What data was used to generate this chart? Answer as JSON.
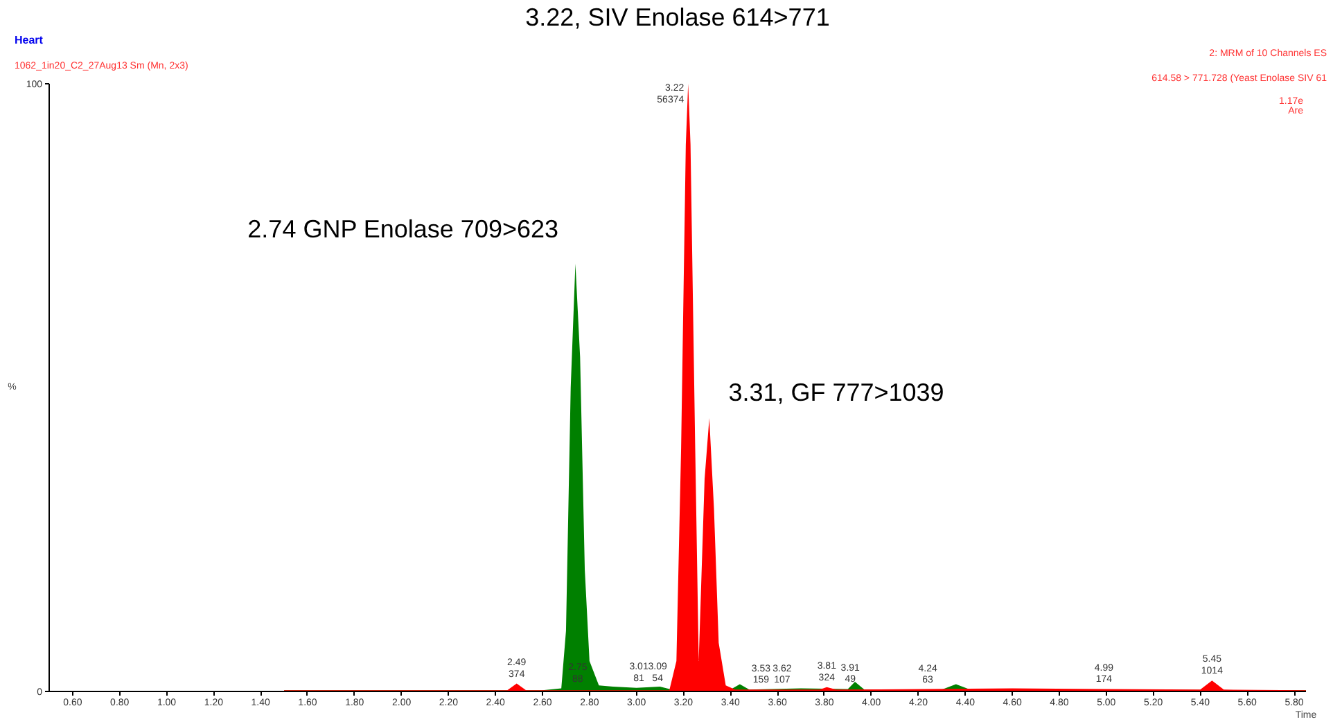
{
  "chart_data": {
    "type": "area",
    "title": "Heart",
    "subtitle": "1062_1in20_C2_27Aug13 Sm (Mn, 2x3)",
    "xlabel": "Time",
    "ylabel": "%",
    "xlim": [
      0.5,
      5.85
    ],
    "ylim": [
      0,
      100
    ],
    "xticks": [
      {
        "value": 0.6,
        "label": "0.60"
      },
      {
        "value": 0.8,
        "label": "0.80"
      },
      {
        "value": 1.0,
        "label": "1.00"
      },
      {
        "value": 1.2,
        "label": "1.20"
      },
      {
        "value": 1.4,
        "label": "1.40"
      },
      {
        "value": 1.6,
        "label": "1.60"
      },
      {
        "value": 1.8,
        "label": "1.80"
      },
      {
        "value": 2.0,
        "label": "2.00"
      },
      {
        "value": 2.2,
        "label": "2.20"
      },
      {
        "value": 2.4,
        "label": "2.40"
      },
      {
        "value": 2.6,
        "label": "2.60"
      },
      {
        "value": 2.8,
        "label": "2.80"
      },
      {
        "value": 3.0,
        "label": "3.00"
      },
      {
        "value": 3.2,
        "label": "3.20"
      },
      {
        "value": 3.4,
        "label": "3.40"
      },
      {
        "value": 3.6,
        "label": "3.60"
      },
      {
        "value": 3.8,
        "label": "3.80"
      },
      {
        "value": 4.0,
        "label": "4.00"
      },
      {
        "value": 4.2,
        "label": "4.20"
      },
      {
        "value": 4.4,
        "label": "4.40"
      },
      {
        "value": 4.6,
        "label": "4.60"
      },
      {
        "value": 4.8,
        "label": "4.80"
      },
      {
        "value": 5.0,
        "label": "5.00"
      },
      {
        "value": 5.2,
        "label": "5.20"
      },
      {
        "value": 5.4,
        "label": "5.40"
      },
      {
        "value": 5.6,
        "label": "5.60"
      },
      {
        "value": 5.8,
        "label": "5.80"
      }
    ],
    "yticks": [
      0,
      100
    ],
    "grid": false,
    "series": [
      {
        "color": "#008000",
        "x": [
          1.5,
          2.6,
          2.68,
          2.7,
          2.72,
          2.74,
          2.76,
          2.78,
          2.8,
          2.84,
          2.9,
          3.0,
          3.1,
          3.15,
          3.4,
          3.44,
          3.48,
          3.7,
          3.9,
          3.93,
          3.97,
          4.3,
          4.36,
          4.42,
          5.0,
          5.85
        ],
        "values": [
          0.2,
          0.2,
          0.5,
          10,
          50,
          70.4,
          55,
          20,
          5,
          1,
          0.8,
          0.6,
          0.8,
          0.3,
          0.3,
          1.2,
          0.3,
          0.5,
          0.4,
          1.6,
          0.3,
          0.3,
          1.2,
          0.3,
          0.3,
          0.2
        ]
      },
      {
        "color": "#ff0000",
        "x": [
          1.5,
          2.45,
          2.49,
          2.53,
          3.14,
          3.17,
          3.19,
          3.21,
          3.22,
          3.23,
          3.25,
          3.265,
          3.29,
          3.31,
          3.33,
          3.35,
          3.38,
          3.42,
          3.78,
          3.81,
          3.85,
          4.6,
          4.99,
          5.4,
          5.45,
          5.5,
          5.85
        ],
        "values": [
          0.2,
          0.2,
          1.3,
          0.2,
          0.2,
          5,
          40,
          90,
          100,
          90,
          40,
          5,
          35,
          45,
          30,
          8,
          1,
          0.3,
          0.3,
          0.7,
          0.3,
          0.5,
          0.4,
          0.3,
          1.8,
          0.3,
          0.2
        ]
      }
    ],
    "annotations": [
      "3.22, SIV Enolase 614>771",
      "2.74 GNP  Enolase 709>623",
      "3.31, GF 777>1039",
      "2: MRM of 10 Channels ES",
      "614.58 > 771.728 (Yeast Enolase SIV 61",
      "1.17e",
      "Are",
      {
        "text": "3.22\n56374",
        "x": 3.22,
        "y": 100
      },
      {
        "text": "2.49\n374",
        "x": 2.49,
        "y": 1.3
      },
      {
        "text": "2.75\n88",
        "x": 2.75,
        "y": 0.5
      },
      {
        "text": "3.01\n81",
        "x": 3.01,
        "y": 0.6
      },
      {
        "text": "3.09\n54",
        "x": 3.09,
        "y": 0.6
      },
      {
        "text": "3.53\n159",
        "x": 3.53,
        "y": 0.3
      },
      {
        "text": "3.62\n107",
        "x": 3.62,
        "y": 0.3
      },
      {
        "text": "3.81\n324",
        "x": 3.81,
        "y": 0.7
      },
      {
        "text": "3.91\n49",
        "x": 3.91,
        "y": 0.4
      },
      {
        "text": "4.24\n63",
        "x": 4.24,
        "y": 0.3
      },
      {
        "text": "4.99\n174",
        "x": 4.99,
        "y": 0.4
      },
      {
        "text": "5.45\n1014",
        "x": 5.45,
        "y": 1.8
      }
    ]
  }
}
